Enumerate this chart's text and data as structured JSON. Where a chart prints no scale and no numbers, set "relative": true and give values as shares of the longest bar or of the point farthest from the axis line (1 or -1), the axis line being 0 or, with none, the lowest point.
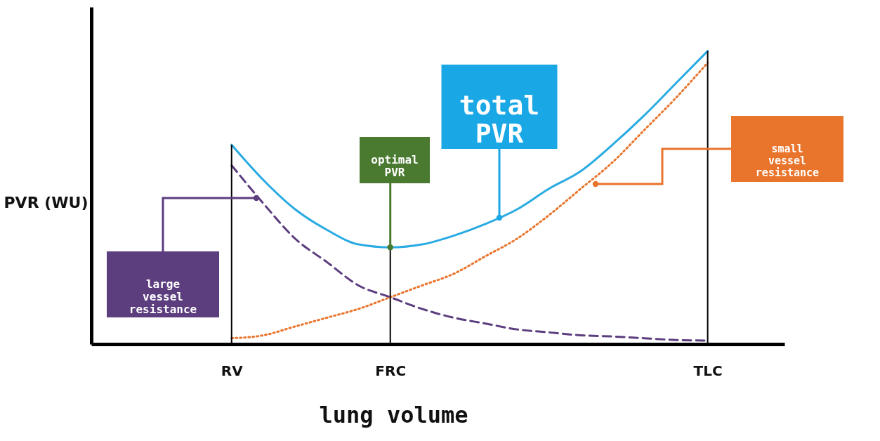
{
  "chart_data": {
    "type": "line",
    "relative": true,
    "xlabel": "lung volume",
    "ylabel": "PVR (WU)",
    "categories": [
      null,
      null,
      null,
      null,
      "RV",
      null,
      null,
      null,
      null,
      "FRC",
      null,
      null,
      null,
      null,
      null,
      null,
      null,
      null,
      null,
      "TLC",
      null,
      null
    ],
    "series": [
      {
        "color": "#29abe2",
        "line_style": "solid",
        "values": [
          null,
          null,
          null,
          null,
          0.68,
          0.56,
          0.46,
          0.39,
          0.34,
          0.33,
          0.34,
          0.37,
          0.41,
          0.46,
          0.53,
          0.59,
          0.68,
          0.78,
          0.89,
          1,
          null,
          null
        ]
      },
      {
        "color": "#5c3d7e",
        "line_style": "dashed",
        "values": [
          null,
          null,
          null,
          null,
          0.61,
          0.48,
          0.36,
          0.28,
          0.2,
          0.16,
          0.12,
          0.09,
          0.07,
          0.05,
          0.04,
          0.03,
          0.026,
          0.02,
          0.014,
          0.012,
          null,
          null
        ]
      },
      {
        "color": "#e9742b",
        "line_style": "dotted",
        "values": [
          null,
          null,
          null,
          null,
          0.02,
          0.03,
          0.06,
          0.09,
          0.12,
          0.16,
          0.2,
          0.24,
          0.3,
          0.36,
          0.44,
          0.53,
          0.62,
          0.73,
          0.84,
          0.96,
          null,
          null
        ]
      }
    ],
    "ref_lines": [
      {
        "axis": "x",
        "value": "RV",
        "color": "#000000"
      },
      {
        "axis": "x",
        "value": "FRC",
        "color": "#000000"
      },
      {
        "axis": "x",
        "value": "TLC",
        "color": "#000000"
      }
    ],
    "annotations": [
      "total PVR",
      {
        "text": "optimal PVR",
        "x": "FRC",
        "y": 0.33
      },
      "large vessel resistance",
      "small vessel resistance"
    ]
  }
}
